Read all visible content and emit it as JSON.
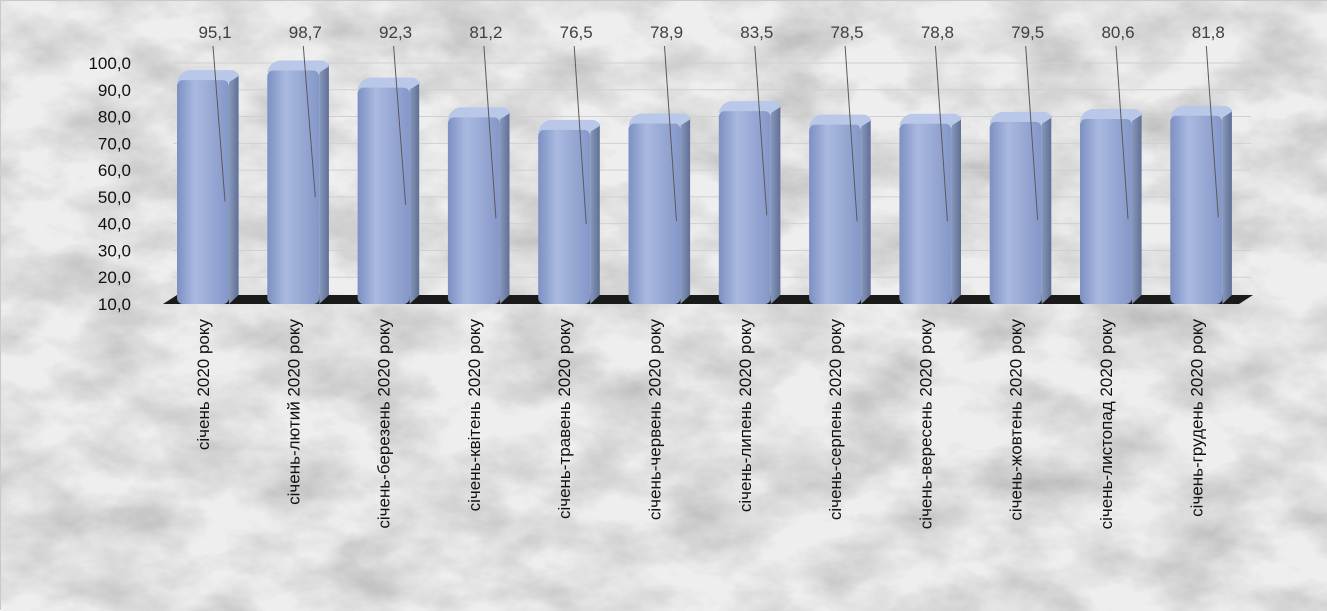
{
  "chart_data": {
    "type": "bar",
    "categories": [
      "січень 2020 року",
      "січень-лютий 2020 року",
      "січень-березень 2020 року",
      "січень-квітень 2020 року",
      "січень-травень 2020 року",
      "січень-червень 2020 року",
      "січень-липень 2020 року",
      "січень-серпень 2020 року",
      "січень-вересень 2020 року",
      "січень-жовтень 2020 року",
      "січень-листопад 2020 року",
      "січень-грудень 2020 року"
    ],
    "values": [
      95.1,
      98.7,
      92.3,
      81.2,
      76.5,
      78.9,
      83.5,
      78.5,
      78.8,
      79.5,
      80.6,
      81.8
    ],
    "data_labels": [
      "95,1",
      "98,7",
      "92,3",
      "81,2",
      "76,5",
      "78,9",
      "83,5",
      "78,5",
      "78,8",
      "79,5",
      "80,6",
      "81,8"
    ],
    "y_ticks": [
      "10,0",
      "20,0",
      "30,0",
      "40,0",
      "50,0",
      "60,0",
      "70,0",
      "80,0",
      "90,0",
      "100,0"
    ],
    "ylim": [
      10,
      100
    ],
    "title": "",
    "xlabel": "",
    "ylabel": "",
    "grid": true,
    "style": "3d-rounded-bars",
    "colors": {
      "bar": "#8FA3D0",
      "bar_highlight": "#B9C8E8",
      "bar_shadow": "#6D82B3",
      "floor": "#1a1a1a",
      "gridline": "#d0d0d0",
      "background": "#eeeeee"
    }
  }
}
